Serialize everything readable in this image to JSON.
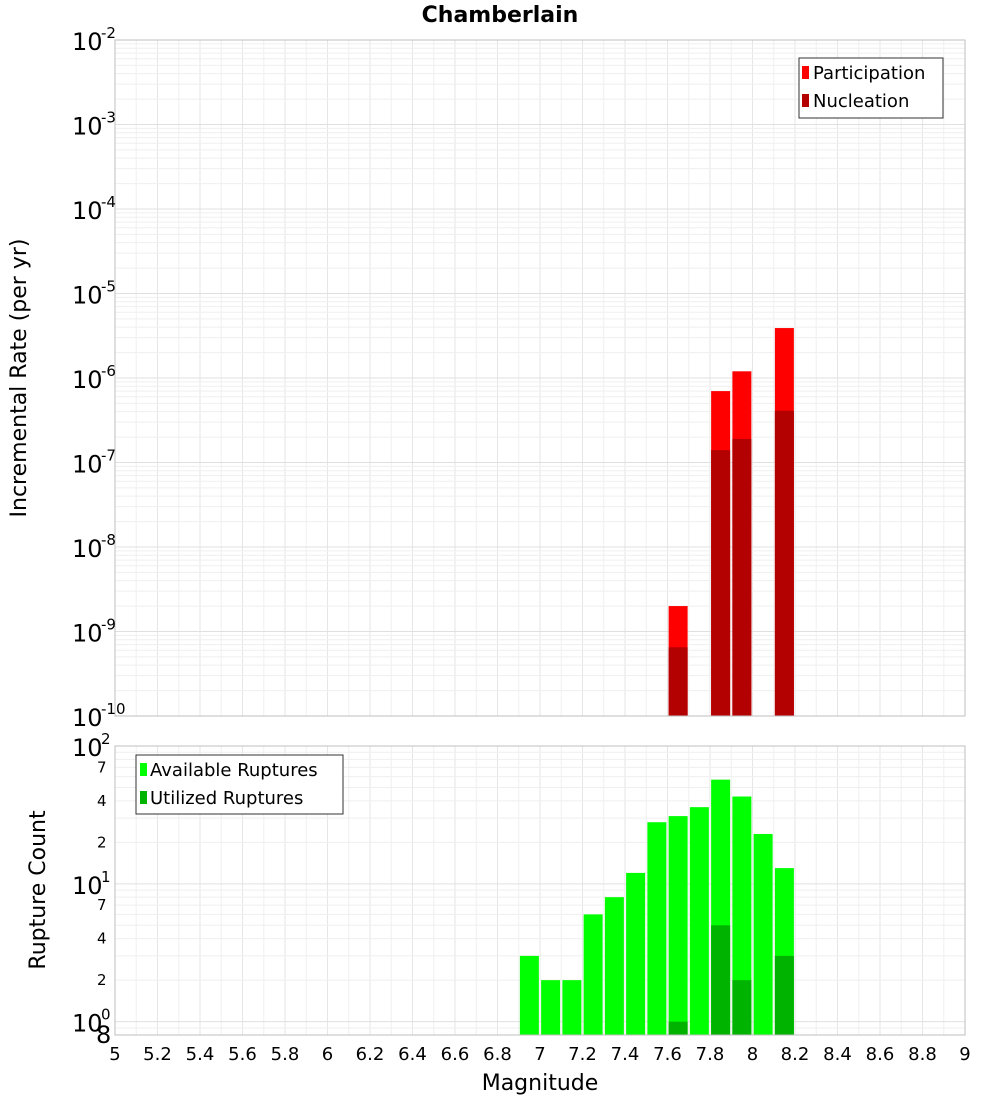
{
  "chart_data": [
    {
      "type": "bar",
      "title": "Chamberlain",
      "xlabel": "",
      "ylabel": "Incremental Rate (per yr)",
      "yscale": "log",
      "ylim": [
        1e-10,
        0.01
      ],
      "xlim": [
        5,
        9
      ],
      "y_tick_labels": [
        {
          "base": "10",
          "exp": "-2"
        },
        {
          "base": "10",
          "exp": "-3"
        },
        {
          "base": "10",
          "exp": "-4"
        },
        {
          "base": "10",
          "exp": "-5"
        },
        {
          "base": "10",
          "exp": "-6"
        },
        {
          "base": "10",
          "exp": "-7"
        },
        {
          "base": "10",
          "exp": "-8"
        },
        {
          "base": "10",
          "exp": "-9"
        },
        {
          "base": "10",
          "exp": "-10"
        }
      ],
      "legend": [
        {
          "label": "Participation",
          "color": "#ff0000"
        },
        {
          "label": "Nucleation",
          "color": "#b30000"
        }
      ],
      "legend_position": "top-right",
      "series": [
        {
          "name": "Participation",
          "color": "#ff0000",
          "x": [
            7.65,
            7.85,
            7.95,
            8.15
          ],
          "values": [
            2e-09,
            7e-07,
            1.2e-06,
            3.9e-06
          ]
        },
        {
          "name": "Nucleation",
          "color": "#b30000",
          "x": [
            7.65,
            7.85,
            7.95,
            8.15
          ],
          "values": [
            6.5e-10,
            1.4e-07,
            1.9e-07,
            4.1e-07
          ]
        }
      ]
    },
    {
      "type": "bar",
      "title": "",
      "xlabel": "Magnitude",
      "ylabel": "Rupture Count",
      "yscale": "log",
      "ylim": [
        0.8,
        100
      ],
      "xlim": [
        5,
        9
      ],
      "x_ticks": [
        "5",
        "5.2",
        "5.4",
        "5.6",
        "5.8",
        "6",
        "6.2",
        "6.4",
        "6.6",
        "6.8",
        "7",
        "7.2",
        "7.4",
        "7.6",
        "7.8",
        "8",
        "8.2",
        "8.4",
        "8.6",
        "8.8",
        "9"
      ],
      "y_tick_labels": [
        {
          "base": "10",
          "exp": "2"
        },
        {
          "base": "10",
          "exp": "1"
        },
        {
          "base": "10",
          "exp": "0"
        }
      ],
      "y_minor_labels": [
        "7",
        "4",
        "2",
        "7",
        "4",
        "2",
        "8"
      ],
      "legend": [
        {
          "label": "Available Ruptures",
          "color": "#00ff00"
        },
        {
          "label": "Utilized Ruptures",
          "color": "#00b300"
        }
      ],
      "legend_position": "top-left",
      "series": [
        {
          "name": "Available Ruptures",
          "color": "#00ff00",
          "x": [
            6.95,
            7.05,
            7.15,
            7.25,
            7.35,
            7.45,
            7.55,
            7.65,
            7.75,
            7.85,
            7.95,
            8.05,
            8.15
          ],
          "values": [
            3,
            2,
            2,
            6,
            8,
            12,
            28,
            31,
            36,
            57,
            43,
            23,
            13
          ]
        },
        {
          "name": "Utilized Ruptures",
          "color": "#00b300",
          "x": [
            7.65,
            7.85,
            7.95,
            8.15
          ],
          "values": [
            1,
            5,
            2,
            3
          ]
        }
      ]
    }
  ]
}
